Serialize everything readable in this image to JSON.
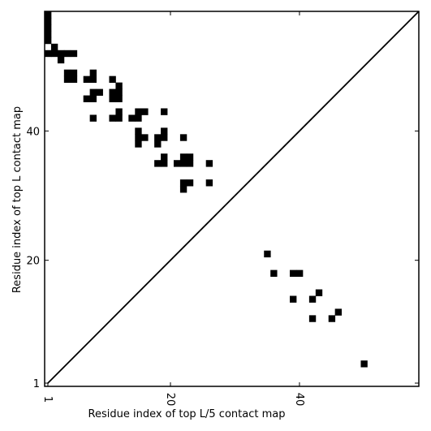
{
  "chart_data": {
    "type": "heatmap",
    "title": "",
    "xlabel": "Residue index of top L/5 contact map",
    "ylabel": "Residue index of top L contact map",
    "xlim": [
      0.5,
      58.5
    ],
    "ylim": [
      0.5,
      58.5
    ],
    "x_ticks": [
      "1",
      "20",
      "40"
    ],
    "x_tick_values": [
      1,
      20,
      40
    ],
    "y_ticks": [
      "1",
      "20",
      "40"
    ],
    "y_tick_values": [
      1,
      20,
      40
    ],
    "x_tick_rotation_deg": 90,
    "diagonal": true,
    "cell_color": "#000000",
    "upper_triangle_contacts": [
      [
        1,
        58
      ],
      [
        1,
        57
      ],
      [
        1,
        56
      ],
      [
        1,
        55
      ],
      [
        1,
        54
      ],
      [
        2,
        53
      ],
      [
        1,
        52
      ],
      [
        2,
        52
      ],
      [
        3,
        52
      ],
      [
        4,
        52
      ],
      [
        5,
        52
      ],
      [
        3,
        51
      ],
      [
        4,
        49
      ],
      [
        5,
        49
      ],
      [
        4,
        48
      ],
      [
        5,
        48
      ],
      [
        7,
        48
      ],
      [
        8,
        48
      ],
      [
        8,
        49
      ],
      [
        11,
        48
      ],
      [
        7,
        45
      ],
      [
        8,
        45
      ],
      [
        8,
        46
      ],
      [
        9,
        46
      ],
      [
        11,
        46
      ],
      [
        12,
        46
      ],
      [
        11,
        45
      ],
      [
        12,
        45
      ],
      [
        12,
        47
      ],
      [
        8,
        42
      ],
      [
        11,
        42
      ],
      [
        12,
        42
      ],
      [
        12,
        43
      ],
      [
        14,
        42
      ],
      [
        15,
        42
      ],
      [
        15,
        43
      ],
      [
        16,
        43
      ],
      [
        19,
        43
      ],
      [
        15,
        40
      ],
      [
        15,
        39
      ],
      [
        16,
        39
      ],
      [
        15,
        38
      ],
      [
        18,
        39
      ],
      [
        19,
        39
      ],
      [
        19,
        40
      ],
      [
        18,
        38
      ],
      [
        22,
        39
      ],
      [
        18,
        35
      ],
      [
        19,
        35
      ],
      [
        19,
        36
      ],
      [
        21,
        35
      ],
      [
        22,
        35
      ],
      [
        22,
        36
      ],
      [
        23,
        36
      ],
      [
        23,
        35
      ],
      [
        26,
        35
      ],
      [
        22,
        32
      ],
      [
        23,
        32
      ],
      [
        22,
        31
      ],
      [
        26,
        32
      ]
    ],
    "lower_triangle_contacts": [
      [
        35,
        21
      ],
      [
        36,
        18
      ],
      [
        39,
        18
      ],
      [
        40,
        18
      ],
      [
        39,
        14
      ],
      [
        42,
        14
      ],
      [
        43,
        15
      ],
      [
        42,
        11
      ],
      [
        45,
        11
      ],
      [
        46,
        12
      ],
      [
        50,
        4
      ]
    ]
  }
}
